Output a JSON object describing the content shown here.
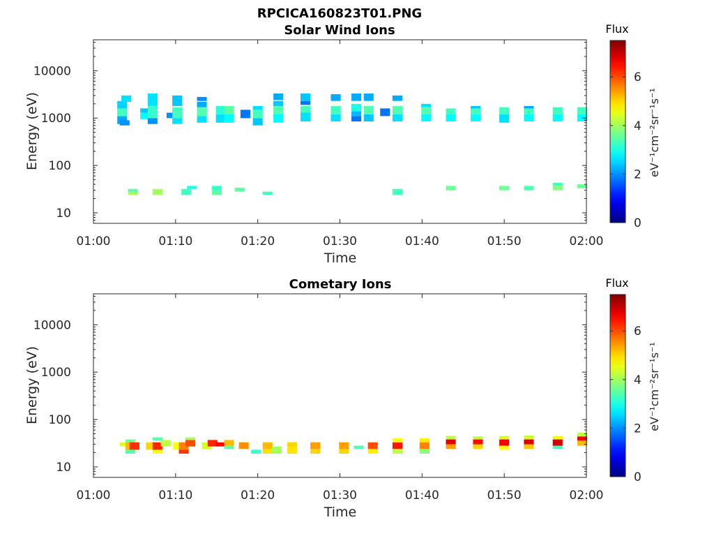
{
  "figure": {
    "title": "RPCICA160823T01.PNG"
  },
  "colorbar": {
    "label": "Flux",
    "units": "eV⁻¹cm⁻²sr⁻¹s⁻¹",
    "ticks": [
      "0",
      "2",
      "4",
      "6"
    ],
    "range": [
      0,
      7.5
    ],
    "colormap": "jet"
  },
  "chart_data": [
    {
      "type": "heatmap",
      "title": "Solar Wind Ions",
      "xlabel": "Time",
      "ylabel": "Energy (eV)",
      "x_ticks": [
        "01:00",
        "01:10",
        "01:20",
        "01:30",
        "01:40",
        "01:50",
        "02:00"
      ],
      "x_range_min": [
        0,
        60
      ],
      "y_scale": "log",
      "y_ticks": [
        "10",
        "100",
        "1000",
        "10000"
      ],
      "y_range": [
        6,
        45000
      ],
      "grid": false,
      "cells": [
        [
          3.5,
          750,
          1100,
          2.2
        ],
        [
          3.5,
          1100,
          1600,
          3.3
        ],
        [
          3.5,
          1600,
          2300,
          2.5
        ],
        [
          3.8,
          700,
          900,
          2.0
        ],
        [
          4.0,
          2200,
          3000,
          2.6
        ],
        [
          6.3,
          950,
          1300,
          2.8
        ],
        [
          6.3,
          1300,
          1600,
          2.4
        ],
        [
          7.2,
          750,
          1000,
          2.0
        ],
        [
          7.2,
          1000,
          1800,
          3.2
        ],
        [
          7.2,
          1800,
          3300,
          2.6
        ],
        [
          9.5,
          1000,
          1300,
          2.0
        ],
        [
          10.2,
          750,
          1000,
          2.6
        ],
        [
          10.2,
          1000,
          1700,
          3.3
        ],
        [
          10.2,
          1800,
          3000,
          2.4
        ],
        [
          13.2,
          800,
          1100,
          2.6
        ],
        [
          13.2,
          1100,
          1700,
          3.4
        ],
        [
          13.2,
          1700,
          2200,
          2.2
        ],
        [
          13.2,
          2300,
          2800,
          2.0
        ],
        [
          15.5,
          800,
          1200,
          2.6
        ],
        [
          15.5,
          1200,
          1800,
          3.1
        ],
        [
          16.5,
          800,
          1200,
          2.8
        ],
        [
          16.5,
          1200,
          1800,
          3.5
        ],
        [
          18.5,
          1000,
          1500,
          1.8
        ],
        [
          20.0,
          700,
          1000,
          2.4
        ],
        [
          20.0,
          1000,
          1500,
          3.3
        ],
        [
          20.0,
          1500,
          1800,
          2.6
        ],
        [
          22.5,
          800,
          1200,
          2.8
        ],
        [
          22.5,
          1200,
          1800,
          3.4
        ],
        [
          22.5,
          1800,
          2300,
          2.4
        ],
        [
          22.5,
          2400,
          3300,
          2.2
        ],
        [
          25.8,
          850,
          1300,
          2.6
        ],
        [
          25.8,
          1300,
          1800,
          3.3
        ],
        [
          25.8,
          1900,
          2300,
          1.8
        ],
        [
          25.8,
          2300,
          3300,
          2.4
        ],
        [
          29.5,
          850,
          1200,
          2.6
        ],
        [
          29.5,
          1200,
          1800,
          3.3
        ],
        [
          29.5,
          2300,
          3200,
          2.2
        ],
        [
          32.0,
          850,
          1100,
          1.8
        ],
        [
          32.0,
          1100,
          1400,
          2.3
        ],
        [
          32.0,
          1400,
          2000,
          3.0
        ],
        [
          32.0,
          2300,
          3300,
          2.2
        ],
        [
          33.5,
          850,
          1200,
          2.4
        ],
        [
          33.5,
          1200,
          1800,
          3.4
        ],
        [
          33.5,
          2300,
          3300,
          2.2
        ],
        [
          35.5,
          1100,
          1600,
          1.8
        ],
        [
          37.0,
          850,
          1200,
          2.6
        ],
        [
          37.0,
          1200,
          1800,
          3.4
        ],
        [
          37.0,
          2300,
          3000,
          2.2
        ],
        [
          40.5,
          850,
          1200,
          2.8
        ],
        [
          40.5,
          1200,
          1700,
          3.4
        ],
        [
          40.5,
          1700,
          2000,
          2.6
        ],
        [
          43.5,
          850,
          1200,
          2.8
        ],
        [
          43.5,
          1200,
          1600,
          3.3
        ],
        [
          46.5,
          850,
          1200,
          2.8
        ],
        [
          46.5,
          1200,
          1600,
          3.3
        ],
        [
          46.5,
          1600,
          1800,
          2.4
        ],
        [
          50.0,
          800,
          1200,
          2.6
        ],
        [
          50.0,
          1200,
          1700,
          3.3
        ],
        [
          53.0,
          850,
          1200,
          2.8
        ],
        [
          53.0,
          1200,
          1600,
          3.3
        ],
        [
          53.0,
          1600,
          1800,
          2.2
        ],
        [
          56.5,
          850,
          1200,
          2.8
        ],
        [
          56.5,
          1200,
          1700,
          3.3
        ],
        [
          59.5,
          850,
          1200,
          2.8
        ],
        [
          59.5,
          1200,
          1700,
          3.3
        ],
        [
          4.8,
          24,
          28,
          4.0
        ],
        [
          4.8,
          28,
          32,
          3.4
        ],
        [
          7.8,
          24,
          32,
          4.0
        ],
        [
          11.3,
          24,
          32,
          3.3
        ],
        [
          12.0,
          32,
          37,
          3.0
        ],
        [
          15.0,
          24,
          30,
          3.5
        ],
        [
          15.0,
          30,
          37,
          3.2
        ],
        [
          17.8,
          28,
          34,
          3.5
        ],
        [
          21.2,
          24,
          28,
          3.3
        ],
        [
          37.0,
          24,
          32,
          3.3
        ],
        [
          43.5,
          30,
          37,
          3.6
        ],
        [
          50.0,
          30,
          37,
          3.6
        ],
        [
          53.0,
          30,
          37,
          3.4
        ],
        [
          56.5,
          30,
          37,
          3.8
        ],
        [
          56.5,
          37,
          43,
          3.3
        ],
        [
          59.5,
          33,
          40,
          3.6
        ]
      ]
    },
    {
      "type": "heatmap",
      "title": "Cometary Ions",
      "xlabel": "Time",
      "ylabel": "Energy (eV)",
      "x_ticks": [
        "01:00",
        "01:10",
        "01:20",
        "01:30",
        "01:40",
        "01:50",
        "02:00"
      ],
      "x_range_min": [
        0,
        60
      ],
      "y_scale": "log",
      "y_ticks": [
        "10",
        "100",
        "1000",
        "10000"
      ],
      "y_range": [
        6,
        45000
      ],
      "grid": false,
      "cells": [
        [
          3.8,
          27,
          33,
          4.4
        ],
        [
          4.5,
          19,
          23,
          3.4
        ],
        [
          4.5,
          23,
          33,
          5.2
        ],
        [
          4.5,
          33,
          38,
          3.6
        ],
        [
          5.0,
          23,
          33,
          6.2
        ],
        [
          7.0,
          23,
          33,
          5.0
        ],
        [
          7.8,
          19,
          23,
          4.6
        ],
        [
          7.8,
          23,
          33,
          6.3
        ],
        [
          7.8,
          36,
          42,
          3.4
        ],
        [
          8.8,
          27,
          37,
          4.2
        ],
        [
          10.3,
          23,
          33,
          4.6
        ],
        [
          11.0,
          19,
          23,
          6.2
        ],
        [
          11.0,
          23,
          33,
          5.6
        ],
        [
          11.8,
          27,
          37,
          6.0
        ],
        [
          11.8,
          37,
          42,
          4.0
        ],
        [
          13.8,
          24,
          33,
          4.4
        ],
        [
          14.5,
          27,
          37,
          6.3
        ],
        [
          15.5,
          27,
          33,
          6.6
        ],
        [
          16.5,
          24,
          28,
          3.5
        ],
        [
          16.5,
          28,
          37,
          5.2
        ],
        [
          18.3,
          24,
          33,
          5.5
        ],
        [
          19.8,
          19,
          23,
          3.2
        ],
        [
          21.2,
          19,
          24,
          4.9
        ],
        [
          21.2,
          24,
          33,
          5.2
        ],
        [
          22.3,
          19,
          27,
          4.0
        ],
        [
          24.2,
          19,
          27,
          4.9
        ],
        [
          24.2,
          27,
          33,
          5.0
        ],
        [
          27.0,
          19,
          24,
          5.0
        ],
        [
          27.0,
          24,
          33,
          5.4
        ],
        [
          30.5,
          19,
          24,
          5.0
        ],
        [
          30.5,
          24,
          33,
          5.4
        ],
        [
          32.3,
          24,
          28,
          3.4
        ],
        [
          34.0,
          19,
          24,
          4.8
        ],
        [
          34.0,
          24,
          33,
          6.0
        ],
        [
          37.0,
          19,
          24,
          4.2
        ],
        [
          37.0,
          24,
          33,
          6.4
        ],
        [
          37.0,
          33,
          40,
          4.6
        ],
        [
          40.3,
          19,
          24,
          3.8
        ],
        [
          40.3,
          24,
          33,
          5.6
        ],
        [
          40.3,
          33,
          40,
          4.8
        ],
        [
          43.5,
          24,
          30,
          5.4
        ],
        [
          43.5,
          30,
          38,
          6.8
        ],
        [
          43.5,
          38,
          45,
          4.2
        ],
        [
          46.8,
          24,
          30,
          5.0
        ],
        [
          46.8,
          30,
          38,
          6.5
        ],
        [
          46.8,
          38,
          44,
          4.2
        ],
        [
          50.0,
          23,
          28,
          4.7
        ],
        [
          50.0,
          28,
          38,
          6.6
        ],
        [
          50.0,
          38,
          45,
          4.4
        ],
        [
          53.0,
          24,
          30,
          5.1
        ],
        [
          53.0,
          30,
          38,
          6.8
        ],
        [
          53.0,
          38,
          46,
          4.3
        ],
        [
          56.5,
          24,
          28,
          3.3
        ],
        [
          56.5,
          28,
          38,
          6.9
        ],
        [
          56.5,
          38,
          45,
          4.6
        ],
        [
          59.5,
          28,
          36,
          5.2
        ],
        [
          59.5,
          36,
          44,
          6.6
        ],
        [
          59.5,
          44,
          53,
          4.2
        ]
      ]
    }
  ]
}
